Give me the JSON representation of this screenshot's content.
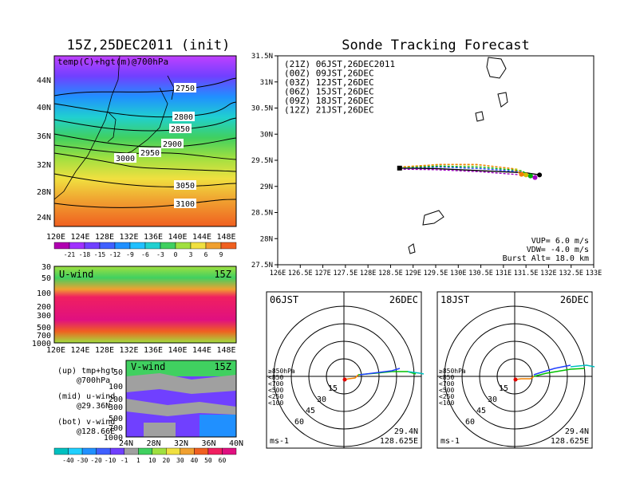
{
  "left": {
    "title": "15Z,25DEC2011 (init)",
    "map_label": "temp(C)+hgt(m)@700hPa",
    "lat_ticks": [
      "44N",
      "40N",
      "36N",
      "32N",
      "28N",
      "24N"
    ],
    "lon_ticks": [
      "120E",
      "124E",
      "128E",
      "132E",
      "136E",
      "140E",
      "144E",
      "148E"
    ],
    "contours": [
      "2750",
      "2800",
      "2850",
      "2900",
      "2950",
      "3000",
      "3050",
      "3100"
    ],
    "temp_scale": [
      "-21",
      "-18",
      "-15",
      "-12",
      "-9",
      "-6",
      "-3",
      "0",
      "3",
      "6",
      "9"
    ],
    "uwind_label": "U-wind",
    "uwind_time": "15Z",
    "p_ticks": [
      "30",
      "50",
      "100",
      "200",
      "300",
      "500",
      "700",
      "1000"
    ],
    "vwind_label": "V-wind",
    "vwind_time": "15Z",
    "vlat_ticks": [
      "24N",
      "28N",
      "32N",
      "36N",
      "40N"
    ],
    "desc1a": "(up) tmp+hgt",
    "desc1b": "@700hPa",
    "desc2a": "(mid) u-wind",
    "desc2b": "@29.36N",
    "desc3a": "(bot) v-wind",
    "desc3b": "@128.66E",
    "wind_scale": [
      "-40",
      "-30",
      "-20",
      "-10",
      "-1",
      "1",
      "10",
      "20",
      "30",
      "40",
      "50",
      "60"
    ]
  },
  "right": {
    "title": "Sonde Tracking Forecast",
    "legend": [
      {
        "text": "(21Z) 06JST,26DEC2011",
        "color": "#000000"
      },
      {
        "text": "(00Z) 09JST,26DEC",
        "color": "#a000c0"
      },
      {
        "text": "(03Z) 12JST,26DEC",
        "color": "#2040ff"
      },
      {
        "text": "(06Z) 15JST,26DEC",
        "color": "#00b000"
      },
      {
        "text": "(09Z) 18JST,26DEC",
        "color": "#d0c000"
      },
      {
        "text": "(12Z) 21JST,26DEC",
        "color": "#f08000"
      }
    ],
    "info1": "VUP= 6.0 m/s",
    "info2": "VDW= -4.0 m/s",
    "info3": "Burst Alt= 18.0 km",
    "lat_ticks": [
      "31.5N",
      "31N",
      "30.5N",
      "30N",
      "29.5N",
      "29N",
      "28.5N",
      "28N",
      "27.5N"
    ],
    "lon_ticks": [
      "126E",
      "126.5E",
      "127E",
      "127.5E",
      "128E",
      "128.5E",
      "129E",
      "129.5E",
      "130E",
      "130.5E",
      "131E",
      "131.5E",
      "132E",
      "132.5E",
      "133E"
    ],
    "hodo1": {
      "time": "06JST",
      "date": "26DEC",
      "lat": "29.4N",
      "lon": "128.625E",
      "unit": "ms-1"
    },
    "hodo2": {
      "time": "18JST",
      "date": "26DEC",
      "lat": "29.4N",
      "lon": "128.625E",
      "unit": "ms-1"
    },
    "hodo_rings": [
      "15",
      "30",
      "45",
      "60"
    ],
    "hodo_levels": [
      {
        "text": "≥850hPa",
        "color": "#e00000"
      },
      {
        "text": "<850",
        "color": "#f08000"
      },
      {
        "text": "<700",
        "color": "#d0c000"
      },
      {
        "text": "<500",
        "color": "#00c000"
      },
      {
        "text": "<250",
        "color": "#00c0c0"
      },
      {
        "text": "<100",
        "color": "#2040ff"
      }
    ]
  },
  "chart_data": [
    {
      "type": "line",
      "title": "Sonde Tracking Forecast",
      "xlim": [
        126,
        133
      ],
      "ylim": [
        27.5,
        31.5
      ],
      "series": [
        {
          "name": "(21Z) 06JST,26DEC2011",
          "x": [
            128.7,
            129.5,
            130.5,
            131.5,
            131.8
          ],
          "y": [
            29.35,
            29.34,
            29.3,
            29.26,
            29.22
          ]
        },
        {
          "name": "(00Z) 09JST,26DEC",
          "x": [
            128.7,
            129.5,
            130.5,
            131.4,
            131.7
          ],
          "y": [
            29.33,
            29.32,
            29.28,
            29.22,
            29.17
          ]
        },
        {
          "name": "(03Z) 12JST,26DEC",
          "x": [
            128.7,
            129.6,
            130.5,
            131.4,
            131.6
          ],
          "y": [
            29.36,
            29.37,
            29.34,
            29.28,
            29.2
          ]
        },
        {
          "name": "(06Z) 15JST,26DEC",
          "x": [
            128.7,
            129.6,
            130.5,
            131.4,
            131.6
          ],
          "y": [
            29.36,
            29.39,
            29.37,
            29.3,
            29.2
          ]
        },
        {
          "name": "(09Z) 18JST,26DEC",
          "x": [
            128.7,
            129.6,
            130.5,
            131.3,
            131.5
          ],
          "y": [
            29.37,
            29.42,
            29.41,
            29.33,
            29.22
          ]
        },
        {
          "name": "(12Z) 21JST,26DEC",
          "x": [
            128.7,
            129.6,
            130.4,
            131.2,
            131.4
          ],
          "y": [
            29.37,
            29.42,
            29.42,
            29.34,
            29.23
          ]
        }
      ]
    }
  ]
}
